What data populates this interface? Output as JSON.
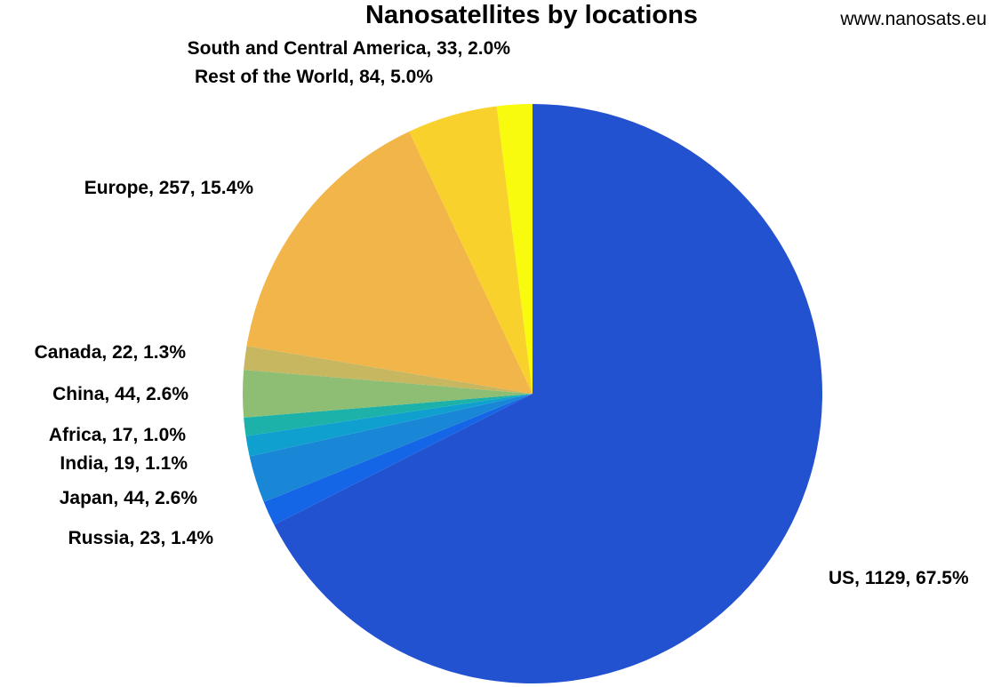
{
  "chart_data": {
    "type": "pie",
    "title": "Nanosatellites by locations",
    "credit": "www.nanosats.eu",
    "slices": [
      {
        "name": "US",
        "value": 1129,
        "percent": "67.5%",
        "label": "US, 1129, 67.5%",
        "color": "#2352d0"
      },
      {
        "name": "Russia",
        "value": 23,
        "percent": "1.4%",
        "label": "Russia, 23, 1.4%",
        "color": "#1566e6"
      },
      {
        "name": "Japan",
        "value": 44,
        "percent": "2.6%",
        "label": "Japan, 44, 2.6%",
        "color": "#1a86d6"
      },
      {
        "name": "India",
        "value": 19,
        "percent": "1.1%",
        "label": "India, 19, 1.1%",
        "color": "#0fa0d0"
      },
      {
        "name": "Africa",
        "value": 17,
        "percent": "1.0%",
        "label": "Africa, 17, 1.0%",
        "color": "#1cb2aa"
      },
      {
        "name": "China",
        "value": 44,
        "percent": "2.6%",
        "label": "China, 44, 2.6%",
        "color": "#8ebe74"
      },
      {
        "name": "Canada",
        "value": 22,
        "percent": "1.3%",
        "label": "Canada, 22, 1.3%",
        "color": "#c6b760"
      },
      {
        "name": "Europe",
        "value": 257,
        "percent": "15.4%",
        "label": "Europe, 257, 15.4%",
        "color": "#f2b54a"
      },
      {
        "name": "Rest of the World",
        "value": 84,
        "percent": "5.0%",
        "label": "Rest of the World, 84, 5.0%",
        "color": "#f8d12c"
      },
      {
        "name": "South and Central America",
        "value": 33,
        "percent": "2.0%",
        "label": "South and Central America, 33, 2.0%",
        "color": "#f9fb0f"
      }
    ]
  }
}
